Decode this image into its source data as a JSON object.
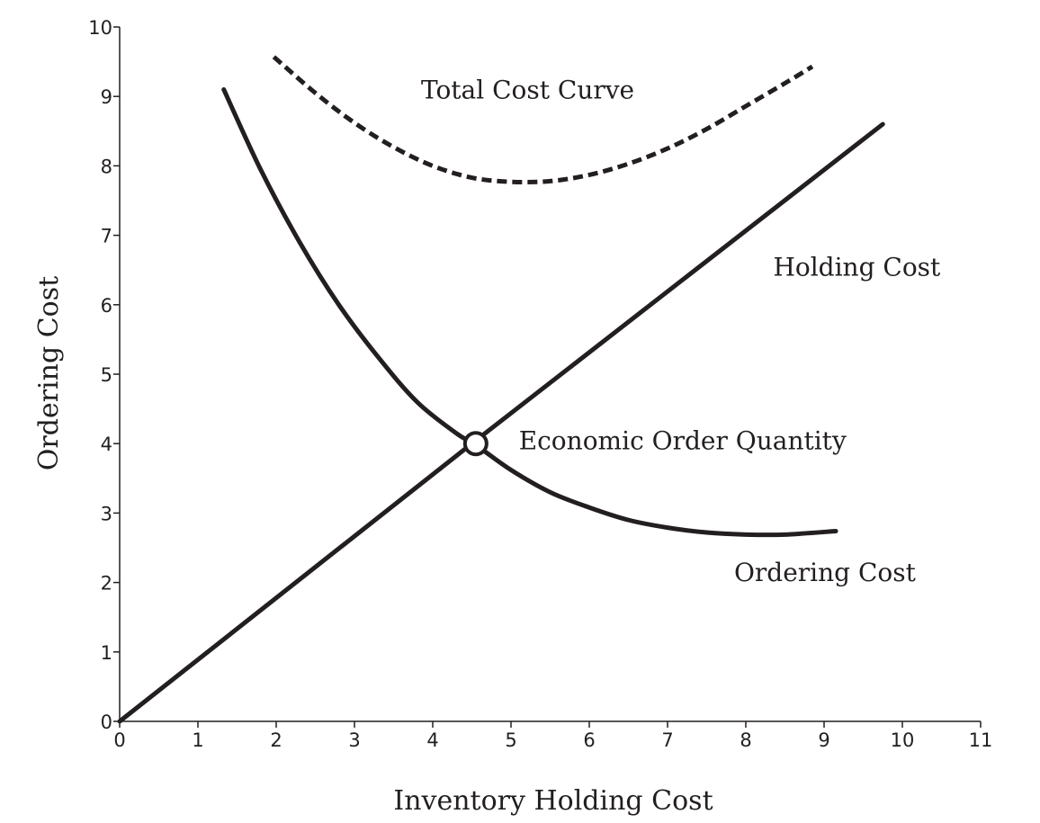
{
  "chart_data": {
    "type": "line",
    "title": "",
    "xlabel": "Inventory Holding Cost",
    "ylabel": "Ordering Cost",
    "xlim": [
      0,
      11
    ],
    "ylim": [
      0,
      10
    ],
    "x_ticks": [
      "0",
      "1",
      "2",
      "3",
      "4",
      "5",
      "6",
      "7",
      "8",
      "9",
      "10",
      "11"
    ],
    "y_ticks": [
      "0",
      "1",
      "2",
      "3",
      "4",
      "5",
      "6",
      "7",
      "8",
      "9",
      "10"
    ],
    "grid": false,
    "legend": "none",
    "line_color": "#231f20",
    "series": [
      {
        "name": "Holding Cost",
        "style": "solid",
        "x": [
          0,
          4.5,
          9.75
        ],
        "y": [
          0,
          4.0,
          8.6
        ]
      },
      {
        "name": "Ordering Cost",
        "style": "solid",
        "x": [
          1.33,
          1.8,
          2.3,
          2.8,
          3.3,
          3.8,
          4.3,
          4.55,
          5.0,
          5.5,
          6.0,
          6.5,
          7.0,
          7.5,
          8.0,
          8.5,
          9.15
        ],
        "y": [
          9.1,
          7.95,
          6.9,
          6.0,
          5.25,
          4.6,
          4.15,
          3.98,
          3.62,
          3.3,
          3.08,
          2.9,
          2.79,
          2.72,
          2.69,
          2.69,
          2.74
        ]
      },
      {
        "name": "Total Cost Curve",
        "style": "dashed",
        "x": [
          1.97,
          2.5,
          3.0,
          3.5,
          4.0,
          4.5,
          5.0,
          5.5,
          6.0,
          6.5,
          7.0,
          7.5,
          8.0,
          8.5,
          8.85
        ],
        "y": [
          9.57,
          9.05,
          8.62,
          8.27,
          8.0,
          7.83,
          7.77,
          7.78,
          7.87,
          8.03,
          8.25,
          8.53,
          8.86,
          9.19,
          9.43
        ]
      }
    ],
    "points": [
      {
        "label": "Economic Order Quantity",
        "x": 4.55,
        "y": 4.0
      }
    ],
    "annotations": [
      {
        "text": "Total Cost Curve",
        "x": 3.85,
        "y": 9.1
      },
      {
        "text": "Holding Cost",
        "x": 8.35,
        "y": 6.55
      },
      {
        "text": "Economic Order Quantity",
        "x": 5.1,
        "y": 4.05
      },
      {
        "text": "Ordering Cost",
        "x": 7.85,
        "y": 2.15
      }
    ]
  }
}
